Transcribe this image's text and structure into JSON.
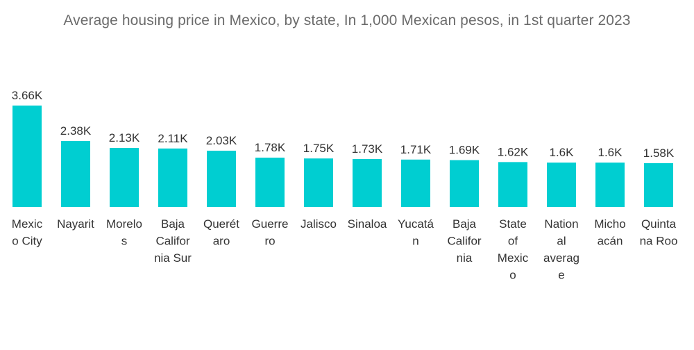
{
  "chart_data": {
    "type": "bar",
    "title": "Average housing price in Mexico, by state, In 1,000 Mexican pesos, in 1st quarter 2023",
    "xlabel": "",
    "ylabel": "",
    "categories": [
      "Mexico City",
      "Nayarit",
      "Morelos",
      "Baja California Sur",
      "Querétaro",
      "Guerrero",
      "Jalisco",
      "Sinaloa",
      "Yucatán",
      "Baja California",
      "State of Mexico",
      "National average",
      "Michoacán",
      "Quintana Roo"
    ],
    "category_label_lines": [
      [
        "Mexic",
        "o City"
      ],
      [
        "Nayarit"
      ],
      [
        "Morelo",
        "s"
      ],
      [
        "Baja",
        "Califor",
        "nia Sur"
      ],
      [
        "Querét",
        "aro"
      ],
      [
        "Guerre",
        "ro"
      ],
      [
        "Jalisco"
      ],
      [
        "Sinaloa"
      ],
      [
        "Yucatá",
        "n"
      ],
      [
        "Baja",
        "Califor",
        "nia"
      ],
      [
        "State",
        "of",
        "Mexic",
        "o"
      ],
      [
        "Nation",
        "al",
        "averag",
        "e"
      ],
      [
        "Micho",
        "acán"
      ],
      [
        "Quinta",
        "na Roo"
      ]
    ],
    "values": [
      3.66,
      2.38,
      2.13,
      2.11,
      2.03,
      1.78,
      1.75,
      1.73,
      1.71,
      1.69,
      1.62,
      1.6,
      1.6,
      1.58
    ],
    "data_labels": [
      "3.66K",
      "2.38K",
      "2.13K",
      "2.11K",
      "2.03K",
      "1.78K",
      "1.75K",
      "1.73K",
      "1.71K",
      "1.69K",
      "1.62K",
      "1.6K",
      "1.6K",
      "1.58K"
    ],
    "ylim": [
      0,
      3.66
    ],
    "bar_color": "#00ced1",
    "grid": false,
    "legend": "none"
  }
}
